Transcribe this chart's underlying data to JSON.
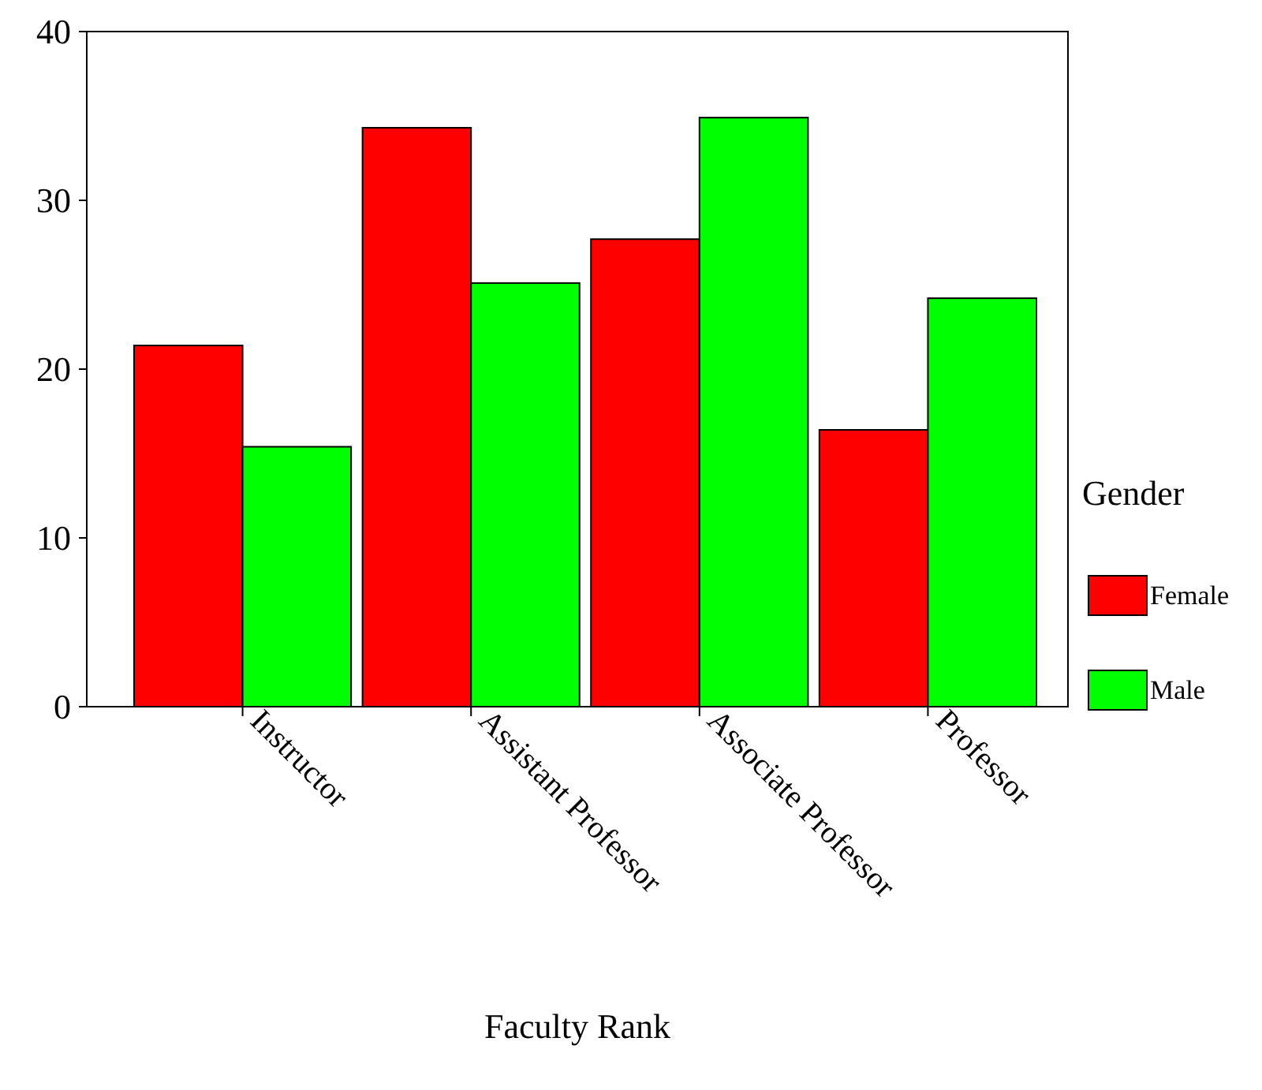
{
  "chart_data": {
    "type": "bar",
    "xlabel": "Faculty Rank",
    "legend_title": "Gender",
    "categories": [
      "Instructor",
      "Assistant Professor",
      "Associate Professor",
      "Professor"
    ],
    "series": [
      {
        "name": "Female",
        "color": "#ff0000",
        "values": [
          21.4,
          34.3,
          27.7,
          16.4
        ]
      },
      {
        "name": "Male",
        "color": "#00ff00",
        "values": [
          15.4,
          25.1,
          34.9,
          24.2
        ]
      }
    ],
    "ylim": [
      0,
      40
    ],
    "yticks": [
      0,
      10,
      20,
      30,
      40
    ],
    "grid": false,
    "legend": "right"
  }
}
